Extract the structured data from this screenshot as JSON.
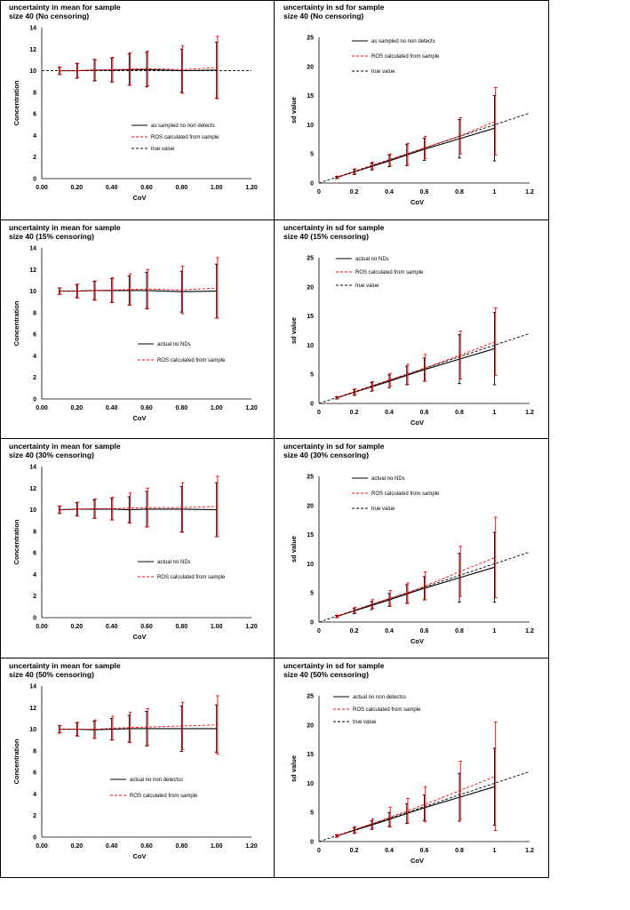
{
  "colors": {
    "actual": "#000000",
    "ros": "#ff0000",
    "true": "#000000"
  },
  "chart_data": [
    {
      "type": "line",
      "title_line1": "uncertainty in mean for sample",
      "title_line2": "size 40 (No censoring)",
      "xlabel": "CoV",
      "ylabel": "Concentration",
      "xlim": [
        0,
        1.2
      ],
      "ylim": [
        0,
        14
      ],
      "xticks": [
        "0.00",
        "0.20",
        "0.40",
        "0.60",
        "0.80",
        "1.00",
        "1.20"
      ],
      "yticks": [
        "0",
        "2",
        "4",
        "6",
        "8",
        "10",
        "12",
        "14"
      ],
      "x": [
        0.1,
        0.2,
        0.3,
        0.4,
        0.5,
        0.6,
        0.8,
        1.0
      ],
      "series": [
        {
          "name": "as sampled no non detects",
          "style": "actual",
          "values": [
            10.0,
            10.0,
            10.05,
            10.05,
            10.1,
            10.1,
            10.0,
            10.05
          ],
          "err": [
            0.35,
            0.7,
            1.0,
            1.1,
            1.45,
            1.6,
            2.0,
            2.6
          ]
        },
        {
          "name": "ROS calculated from sample",
          "style": "ros",
          "values": [
            10.0,
            10.0,
            10.05,
            10.1,
            10.15,
            10.2,
            10.1,
            10.3
          ],
          "err": [
            0.35,
            0.65,
            0.95,
            1.15,
            1.5,
            1.6,
            2.2,
            2.9
          ]
        },
        {
          "name": "true value",
          "style": "true",
          "line_x": [
            0,
            1.2
          ],
          "line_y": [
            10,
            10
          ]
        }
      ]
    },
    {
      "type": "line",
      "title_line1": "uncertainty in sd for sample",
      "title_line2": "size 40 (No censoring)",
      "xlabel": "CoV",
      "ylabel": "sd value",
      "xlim": [
        0,
        1.2
      ],
      "ylim": [
        0,
        25
      ],
      "xticks": [
        "0",
        "0.2",
        "0.4",
        "0.6",
        "0.8",
        "1",
        "1.2"
      ],
      "yticks": [
        "0",
        "5",
        "10",
        "15",
        "20",
        "25"
      ],
      "x": [
        0.1,
        0.2,
        0.3,
        0.4,
        0.5,
        0.6,
        0.8,
        1.0
      ],
      "series": [
        {
          "name": "as sampled no non detects",
          "style": "actual",
          "values": [
            0.95,
            1.9,
            2.85,
            3.8,
            4.8,
            5.8,
            7.6,
            9.4
          ],
          "err": [
            0.2,
            0.45,
            0.6,
            1.0,
            1.8,
            1.9,
            3.3,
            5.6
          ]
        },
        {
          "name": "ROS calculated from sample",
          "style": "ros",
          "values": [
            1.0,
            2.0,
            3.0,
            4.0,
            5.0,
            6.1,
            8.1,
            10.6
          ],
          "err": [
            0.2,
            0.45,
            0.6,
            1.0,
            1.8,
            1.9,
            3.1,
            5.8
          ]
        },
        {
          "name": "true value",
          "style": "true",
          "line_x": [
            0,
            1.2
          ],
          "line_y": [
            0,
            12
          ]
        }
      ]
    },
    {
      "type": "line",
      "title_line1": "uncertainty in mean for sample",
      "title_line2": "size 40 (15% censoring)",
      "xlabel": "CoV",
      "ylabel": "Concentration",
      "xlim": [
        0,
        1.2
      ],
      "ylim": [
        0,
        14
      ],
      "xticks": [
        "0.00",
        "0.20",
        "0.40",
        "0.60",
        "0.80",
        "1.00",
        "1.20"
      ],
      "yticks": [
        "0",
        "2",
        "4",
        "6",
        "8",
        "10",
        "12",
        "14"
      ],
      "x": [
        0.1,
        0.2,
        0.3,
        0.4,
        0.5,
        0.6,
        0.8,
        1.0
      ],
      "series": [
        {
          "name": "actual no NDs",
          "style": "actual",
          "values": [
            10.0,
            10.0,
            10.05,
            10.05,
            10.05,
            10.05,
            9.95,
            10.0
          ],
          "err": [
            0.3,
            0.6,
            0.85,
            1.1,
            1.35,
            1.7,
            1.9,
            2.5
          ]
        },
        {
          "name": "ROS calculated from sample",
          "style": "ros",
          "values": [
            10.0,
            10.0,
            10.05,
            10.1,
            10.15,
            10.2,
            10.1,
            10.3
          ],
          "err": [
            0.3,
            0.65,
            0.9,
            1.15,
            1.45,
            1.8,
            2.2,
            2.8
          ]
        }
      ]
    },
    {
      "type": "line",
      "title_line1": "uncertainty in sd for sample",
      "title_line2": "size 40 (15% censoring)",
      "xlabel": "CoV",
      "ylabel": "sd value",
      "xlim": [
        0,
        1.2
      ],
      "ylim": [
        0,
        25
      ],
      "xticks": [
        "0",
        "0.2",
        "0.4",
        "0.6",
        "0.8",
        "1",
        "1.2"
      ],
      "yticks": [
        "0",
        "5",
        "10",
        "15",
        "20",
        "25"
      ],
      "x": [
        0.1,
        0.2,
        0.3,
        0.4,
        0.5,
        0.6,
        0.8,
        1.0
      ],
      "series": [
        {
          "name": "actual no NDs",
          "style": "actual",
          "values": [
            0.95,
            1.9,
            2.85,
            3.8,
            4.8,
            5.8,
            7.6,
            9.4
          ],
          "err": [
            0.2,
            0.5,
            0.75,
            1.1,
            1.6,
            2.0,
            4.2,
            6.2
          ]
        },
        {
          "name": "ROS calculated from sample",
          "style": "ros",
          "values": [
            1.0,
            2.0,
            3.0,
            4.05,
            5.0,
            6.1,
            8.3,
            10.6
          ],
          "err": [
            0.2,
            0.5,
            0.75,
            1.1,
            1.7,
            2.3,
            4.1,
            5.8
          ]
        },
        {
          "name": "true value",
          "style": "true",
          "line_x": [
            0,
            1.2
          ],
          "line_y": [
            0,
            12
          ]
        }
      ]
    },
    {
      "type": "line",
      "title_line1": "uncertainty in mean for sample",
      "title_line2": "size 40 (30% censoring)",
      "xlabel": "CoV",
      "ylabel": "Concentration",
      "xlim": [
        0,
        1.2
      ],
      "ylim": [
        0,
        14
      ],
      "xticks": [
        "0.00",
        "0.20",
        "0.40",
        "0.60",
        "0.80",
        "1.00",
        "1.20"
      ],
      "yticks": [
        "0",
        "2",
        "4",
        "6",
        "8",
        "10",
        "12",
        "14"
      ],
      "x": [
        0.1,
        0.2,
        0.3,
        0.4,
        0.5,
        0.6,
        0.8,
        1.0
      ],
      "series": [
        {
          "name": "actual no NDs",
          "style": "actual",
          "values": [
            10.0,
            10.05,
            10.05,
            10.05,
            10.0,
            10.05,
            10.05,
            10.0
          ],
          "err": [
            0.35,
            0.6,
            0.85,
            1.0,
            1.2,
            1.65,
            2.1,
            2.5
          ]
        },
        {
          "name": "ROS calculated from sample",
          "style": "ros",
          "values": [
            10.0,
            10.05,
            10.1,
            10.1,
            10.15,
            10.2,
            10.2,
            10.3
          ],
          "err": [
            0.35,
            0.65,
            0.9,
            1.05,
            1.4,
            1.8,
            2.3,
            2.8
          ]
        }
      ]
    },
    {
      "type": "line",
      "title_line1": "uncertainty in sd for sample",
      "title_line2": "size 40 (30% censoring)",
      "xlabel": "CoV",
      "ylabel": "sd value",
      "xlim": [
        0,
        1.2
      ],
      "ylim": [
        0,
        25
      ],
      "xticks": [
        "0",
        "0.2",
        "0.4",
        "0.6",
        "0.8",
        "1",
        "1.2"
      ],
      "yticks": [
        "0",
        "5",
        "10",
        "15",
        "20",
        "25"
      ],
      "x": [
        0.1,
        0.2,
        0.3,
        0.4,
        0.5,
        0.6,
        0.8,
        1.0
      ],
      "series": [
        {
          "name": "actual no NDs",
          "style": "actual",
          "values": [
            0.95,
            1.9,
            2.85,
            3.8,
            4.8,
            5.8,
            7.6,
            9.4
          ],
          "err": [
            0.2,
            0.45,
            0.7,
            1.1,
            1.6,
            2.0,
            4.2,
            6.0
          ]
        },
        {
          "name": "ROS calculated from sample",
          "style": "ros",
          "values": [
            1.0,
            2.05,
            3.1,
            4.1,
            5.0,
            6.2,
            8.7,
            11.1
          ],
          "err": [
            0.2,
            0.5,
            0.75,
            1.3,
            1.7,
            2.4,
            4.3,
            6.9
          ]
        },
        {
          "name": "true value",
          "style": "true",
          "line_x": [
            0,
            1.2
          ],
          "line_y": [
            0,
            12
          ]
        }
      ]
    },
    {
      "type": "line",
      "title_line1": "uncertainty in mean for sample",
      "title_line2": "size 40 (50% censoring)",
      "xlabel": "CoV",
      "ylabel": "Concentration",
      "xlim": [
        0,
        1.2
      ],
      "ylim": [
        0,
        14
      ],
      "xticks": [
        "0.00",
        "0.20",
        "0.40",
        "0.60",
        "0.80",
        "1.00",
        "1.20"
      ],
      "yticks": [
        "0",
        "2",
        "4",
        "6",
        "8",
        "10",
        "12",
        "14"
      ],
      "x": [
        0.1,
        0.2,
        0.3,
        0.4,
        0.5,
        0.6,
        0.8,
        1.0
      ],
      "series": [
        {
          "name": "actual no non detectss",
          "style": "actual",
          "values": [
            10.0,
            10.0,
            9.95,
            10.0,
            10.05,
            10.05,
            10.05,
            10.05
          ],
          "err": [
            0.35,
            0.6,
            0.8,
            1.0,
            1.25,
            1.6,
            2.1,
            2.2
          ]
        },
        {
          "name": "ROS calculated from sample",
          "style": "ros",
          "values": [
            10.0,
            10.0,
            10.0,
            10.1,
            10.15,
            10.2,
            10.3,
            10.4
          ],
          "err": [
            0.35,
            0.65,
            0.85,
            1.1,
            1.4,
            1.7,
            2.2,
            2.7
          ]
        }
      ]
    },
    {
      "type": "line",
      "title_line1": "uncertainty in sd for sample",
      "title_line2": "size 40 (50% censoring)",
      "xlabel": "CoV",
      "ylabel": "sd value",
      "xlim": [
        0,
        1.2
      ],
      "ylim": [
        0,
        25
      ],
      "xticks": [
        "0",
        "0.2",
        "0.4",
        "0.6",
        "0.8",
        "1",
        "1.2"
      ],
      "yticks": [
        "0",
        "5",
        "10",
        "15",
        "20",
        "25"
      ],
      "x": [
        0.1,
        0.2,
        0.3,
        0.4,
        0.5,
        0.6,
        0.8,
        1.0
      ],
      "series": [
        {
          "name": "actual no non detectss",
          "style": "actual",
          "values": [
            0.95,
            1.9,
            2.85,
            3.8,
            4.8,
            5.8,
            7.6,
            9.4
          ],
          "err": [
            0.2,
            0.5,
            0.75,
            1.2,
            1.7,
            2.2,
            4.1,
            6.6
          ]
        },
        {
          "name": "ROS calculated from sample",
          "style": "ros",
          "values": [
            1.0,
            2.05,
            3.1,
            4.2,
            5.3,
            6.4,
            8.8,
            11.2
          ],
          "err": [
            0.2,
            0.5,
            0.8,
            1.7,
            2.1,
            3.0,
            5.0,
            9.3
          ]
        },
        {
          "name": "true value",
          "style": "true",
          "line_x": [
            0,
            1.2
          ],
          "line_y": [
            0,
            12
          ]
        }
      ]
    }
  ]
}
